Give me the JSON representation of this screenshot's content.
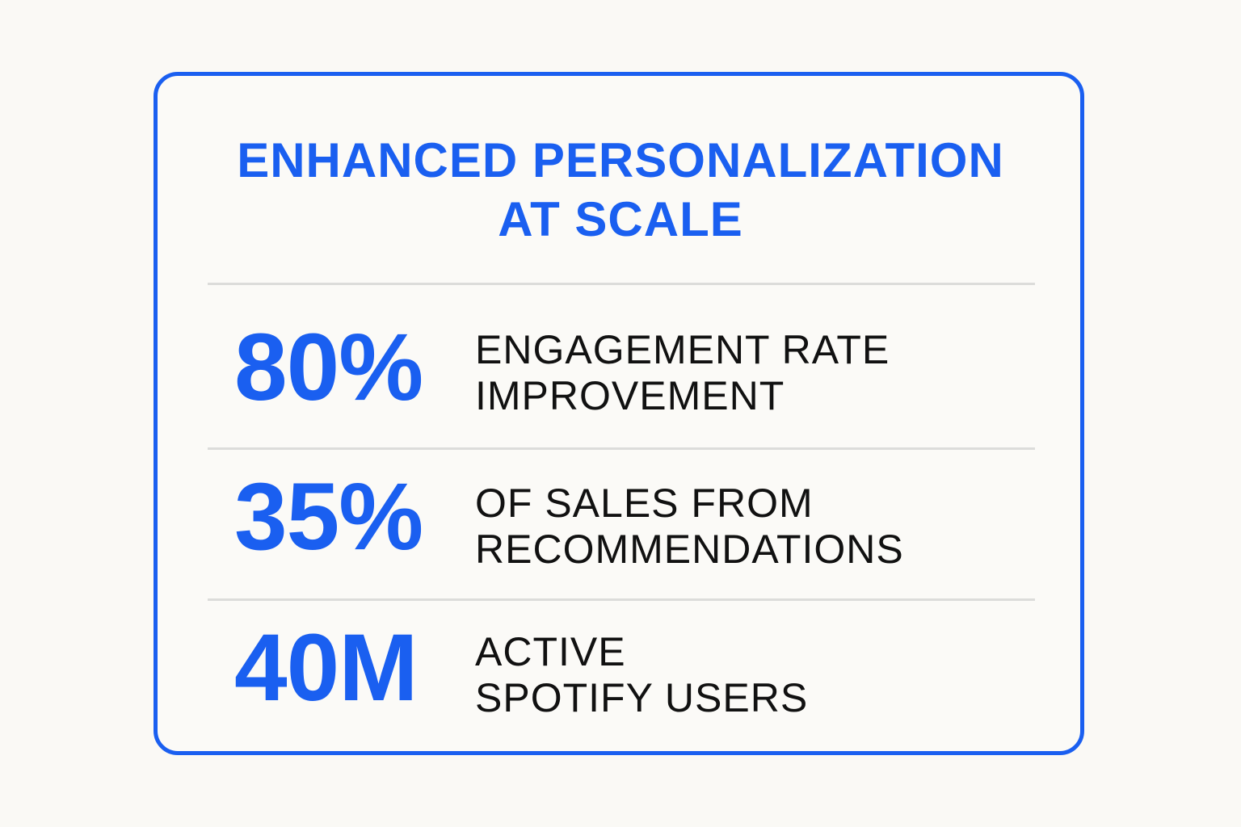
{
  "colors": {
    "accent": "#1a5ff0",
    "background": "#faf9f5",
    "text": "#111111",
    "divider": "#dcdcda"
  },
  "title": {
    "line1": "ENHANCED PERSONALIZATION",
    "line2": "AT SCALE"
  },
  "stats": [
    {
      "value": "80%",
      "label_line1": "ENGAGEMENT RATE",
      "label_line2": "IMPROVEMENT"
    },
    {
      "value": "35%",
      "label_line1": "OF SALES FROM",
      "label_line2": "RECOMMENDATIONS"
    },
    {
      "value": "40M",
      "label_line1": "ACTIVE",
      "label_line2": "SPOTIFY USERS"
    }
  ]
}
